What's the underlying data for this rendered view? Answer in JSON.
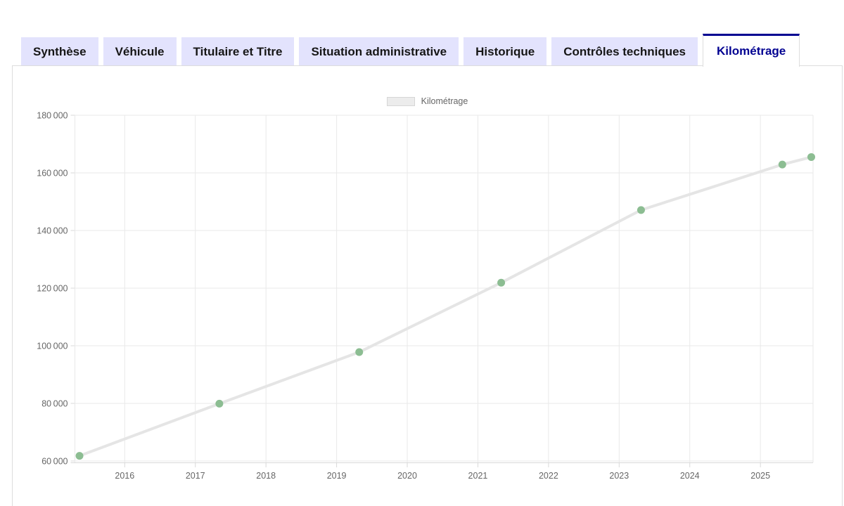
{
  "tabs": {
    "items": [
      {
        "label": "Synthèse",
        "active": false
      },
      {
        "label": "Véhicule",
        "active": false
      },
      {
        "label": "Titulaire et Titre",
        "active": false
      },
      {
        "label": "Situation administrative",
        "active": false
      },
      {
        "label": "Historique",
        "active": false
      },
      {
        "label": "Contrôles techniques",
        "active": false
      },
      {
        "label": "Kilométrage",
        "active": true
      }
    ]
  },
  "legend": {
    "label": "Kilométrage"
  },
  "colors": {
    "accent_blue": "#000091",
    "tab_inactive_bg": "#e3e3fd",
    "tab_text": "#161616",
    "panel_border": "#dddddd",
    "grid": "#e9e9e9",
    "axis": "#d9d9d9",
    "line": "#e5e5e5",
    "point_green": "#8cbd92",
    "tick_text": "#666666",
    "legend_text": "#666666"
  },
  "chart_data": {
    "type": "line",
    "title": "",
    "legend_entries": [
      "Kilométrage"
    ],
    "legend_position": "top-center",
    "grid": true,
    "x_axis": {
      "kind": "time-years",
      "min": 2015.295,
      "max": 2025.745,
      "ticks": [
        2016,
        2017,
        2018,
        2019,
        2020,
        2021,
        2022,
        2023,
        2024,
        2025
      ],
      "tick_labels": [
        "2016",
        "2017",
        "2018",
        "2019",
        "2020",
        "2021",
        "2022",
        "2023",
        "2024",
        "2025"
      ]
    },
    "y_axis": {
      "label": "",
      "min": 60000,
      "max": 180000,
      "tick_step": 20000,
      "ticks": [
        60000,
        80000,
        100000,
        120000,
        140000,
        160000,
        180000
      ],
      "tick_labels": [
        "60 000",
        "80 000",
        "100 000",
        "120 000",
        "140 000",
        "160 000",
        "180 000"
      ]
    },
    "series": [
      {
        "name": "Kilométrage",
        "unit": "km",
        "points": [
          {
            "x": 2015.36,
            "y": 61800
          },
          {
            "x": 2017.34,
            "y": 79900
          },
          {
            "x": 2019.32,
            "y": 97800
          },
          {
            "x": 2021.33,
            "y": 121900
          },
          {
            "x": 2023.31,
            "y": 147100
          },
          {
            "x": 2025.31,
            "y": 162900
          },
          {
            "x": 2025.72,
            "y": 165500
          }
        ]
      }
    ]
  }
}
